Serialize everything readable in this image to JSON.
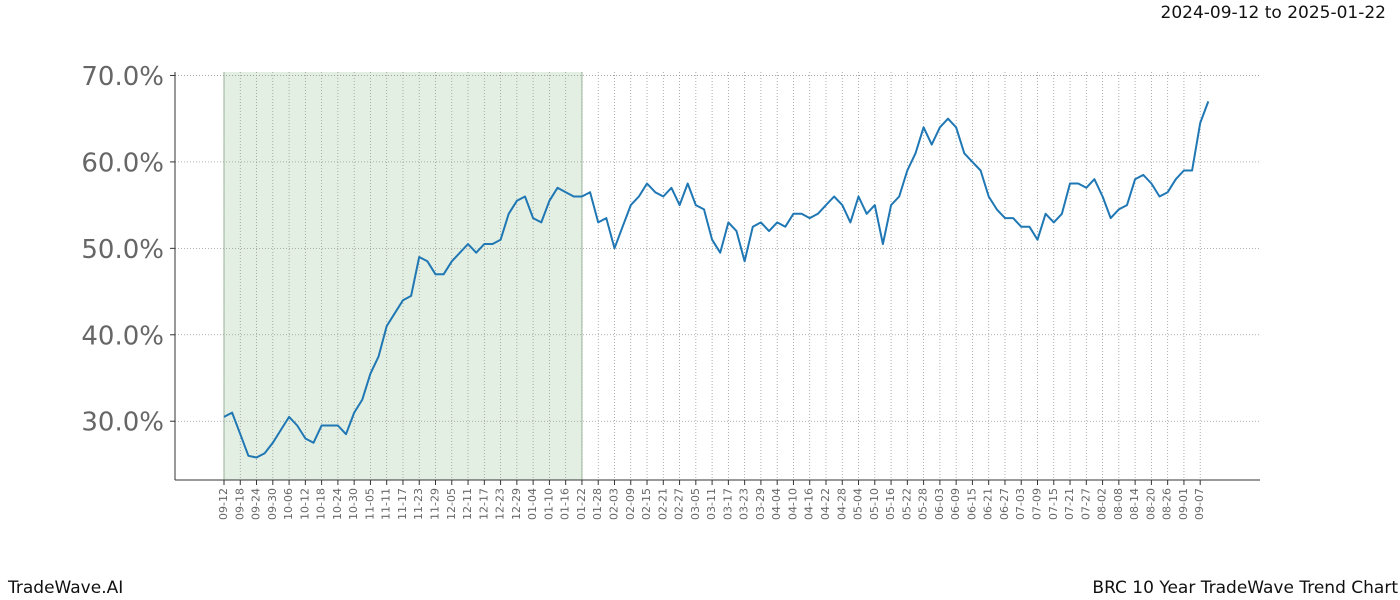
{
  "chart_data": {
    "type": "line",
    "title": "2024-09-12 to 2025-01-22",
    "footer_left": "TradeWave.AI",
    "footer_right": "BRC 10 Year TradeWave Trend Chart",
    "categories": [
      "09-12",
      null,
      "09-18",
      null,
      "09-24",
      null,
      "09-30",
      null,
      "10-06",
      null,
      "10-12",
      null,
      "10-18",
      null,
      "10-24",
      null,
      "10-30",
      null,
      "11-05",
      null,
      "11-11",
      null,
      "11-17",
      null,
      "11-23",
      null,
      "11-29",
      null,
      "12-05",
      null,
      "12-11",
      null,
      "12-17",
      null,
      "12-23",
      null,
      "12-29",
      null,
      "01-04",
      null,
      "01-10",
      null,
      "01-16",
      null,
      "01-22",
      null,
      "01-28",
      null,
      "02-03",
      null,
      "02-09",
      null,
      "02-15",
      null,
      "02-21",
      null,
      "02-27",
      null,
      "03-05",
      null,
      "03-11",
      null,
      "03-17",
      null,
      "03-23",
      null,
      "03-29",
      null,
      "04-04",
      null,
      "04-10",
      null,
      "04-16",
      null,
      "04-22",
      null,
      "04-28",
      null,
      "05-04",
      null,
      "05-10",
      null,
      "05-16",
      null,
      "05-22",
      null,
      "05-28",
      null,
      "06-03",
      null,
      "06-09",
      null,
      "06-15",
      null,
      "06-21",
      null,
      "06-27",
      null,
      "07-03",
      null,
      "07-09",
      null,
      "07-15",
      null,
      "07-21",
      null,
      "07-27",
      null,
      "08-02",
      null,
      "08-08",
      null,
      "08-14",
      null,
      "08-20",
      null,
      "08-26",
      null,
      "09-01",
      null,
      "09-07",
      null
    ],
    "series": [
      {
        "color": "#1f77b4",
        "values": [
          30.5,
          31,
          28.5,
          26,
          25.8,
          26.3,
          27.5,
          29,
          30.5,
          29.5,
          28,
          27.5,
          29.5,
          29.5,
          29.5,
          28.5,
          31,
          32.5,
          35.5,
          37.5,
          41,
          42.5,
          44,
          44.5,
          49,
          48.5,
          47,
          47,
          48.5,
          49.5,
          50.5,
          49.5,
          50.5,
          50.5,
          51,
          54,
          55.5,
          56,
          53.5,
          53,
          55.5,
          57,
          56.5,
          56,
          56,
          56.5,
          53,
          53.5,
          50,
          52.5,
          55,
          56,
          57.5,
          56.5,
          56,
          57,
          55,
          57.5,
          55,
          54.5,
          51,
          49.5,
          53,
          52,
          48.5,
          52.5,
          53,
          52,
          53,
          52.5,
          54,
          54,
          53.5,
          54,
          55,
          56,
          55,
          53,
          56,
          54,
          55,
          50.5,
          55,
          56,
          59,
          61,
          64,
          62,
          64,
          65,
          64,
          61,
          60,
          59,
          56,
          54.5,
          53.5,
          53.5,
          52.5,
          52.5,
          51,
          54,
          53,
          54,
          57.5,
          57.5,
          57,
          58,
          56,
          53.5,
          54.5,
          55,
          58,
          58.5,
          57.5,
          56,
          56.5,
          58,
          59,
          59,
          64.5,
          67
        ]
      }
    ],
    "highlight": {
      "start": "09-12",
      "end": "01-22",
      "color": "#c8e0c8"
    },
    "ylim": [
      23.2,
      70.4
    ],
    "yticks": [
      {
        "value": 30,
        "label": "30.0%"
      },
      {
        "value": 40,
        "label": "40.0%"
      },
      {
        "value": 50,
        "label": "50.0%"
      },
      {
        "value": 60,
        "label": "60.0%"
      },
      {
        "value": 70,
        "label": "70.0%"
      }
    ],
    "grid": true
  }
}
